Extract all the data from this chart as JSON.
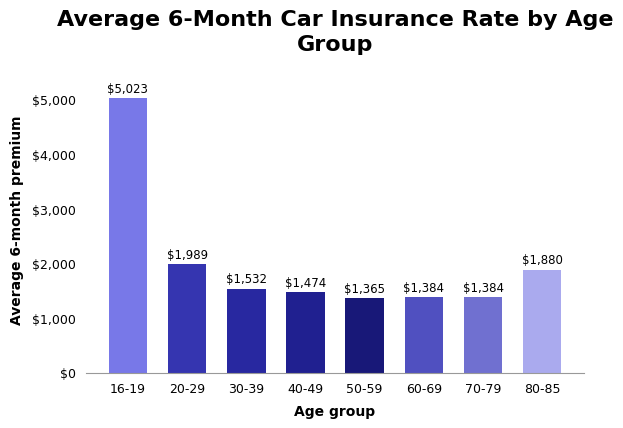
{
  "title": "Average 6-Month Car Insurance Rate by Age\nGroup",
  "xlabel": "Age group",
  "ylabel": "Average 6-month premium",
  "categories": [
    "16-19",
    "20-29",
    "30-39",
    "40-49",
    "50-59",
    "60-69",
    "70-79",
    "80-85"
  ],
  "values": [
    5023,
    1989,
    1532,
    1474,
    1365,
    1384,
    1384,
    1880
  ],
  "bar_colors": [
    "#7878E8",
    "#3535B0",
    "#2828A0",
    "#202090",
    "#181878",
    "#5050C0",
    "#7070D0",
    "#AAAAEE"
  ],
  "ylim": [
    0,
    5600
  ],
  "yticks": [
    0,
    1000,
    2000,
    3000,
    4000,
    5000
  ],
  "ytick_labels": [
    "$0",
    "$1,000",
    "$2,000",
    "$3,000",
    "$4,000",
    "$5,000"
  ],
  "label_format": "${:,}",
  "background_color": "#ffffff",
  "title_fontsize": 16,
  "axis_label_fontsize": 10,
  "tick_fontsize": 9,
  "bar_label_fontsize": 8.5
}
